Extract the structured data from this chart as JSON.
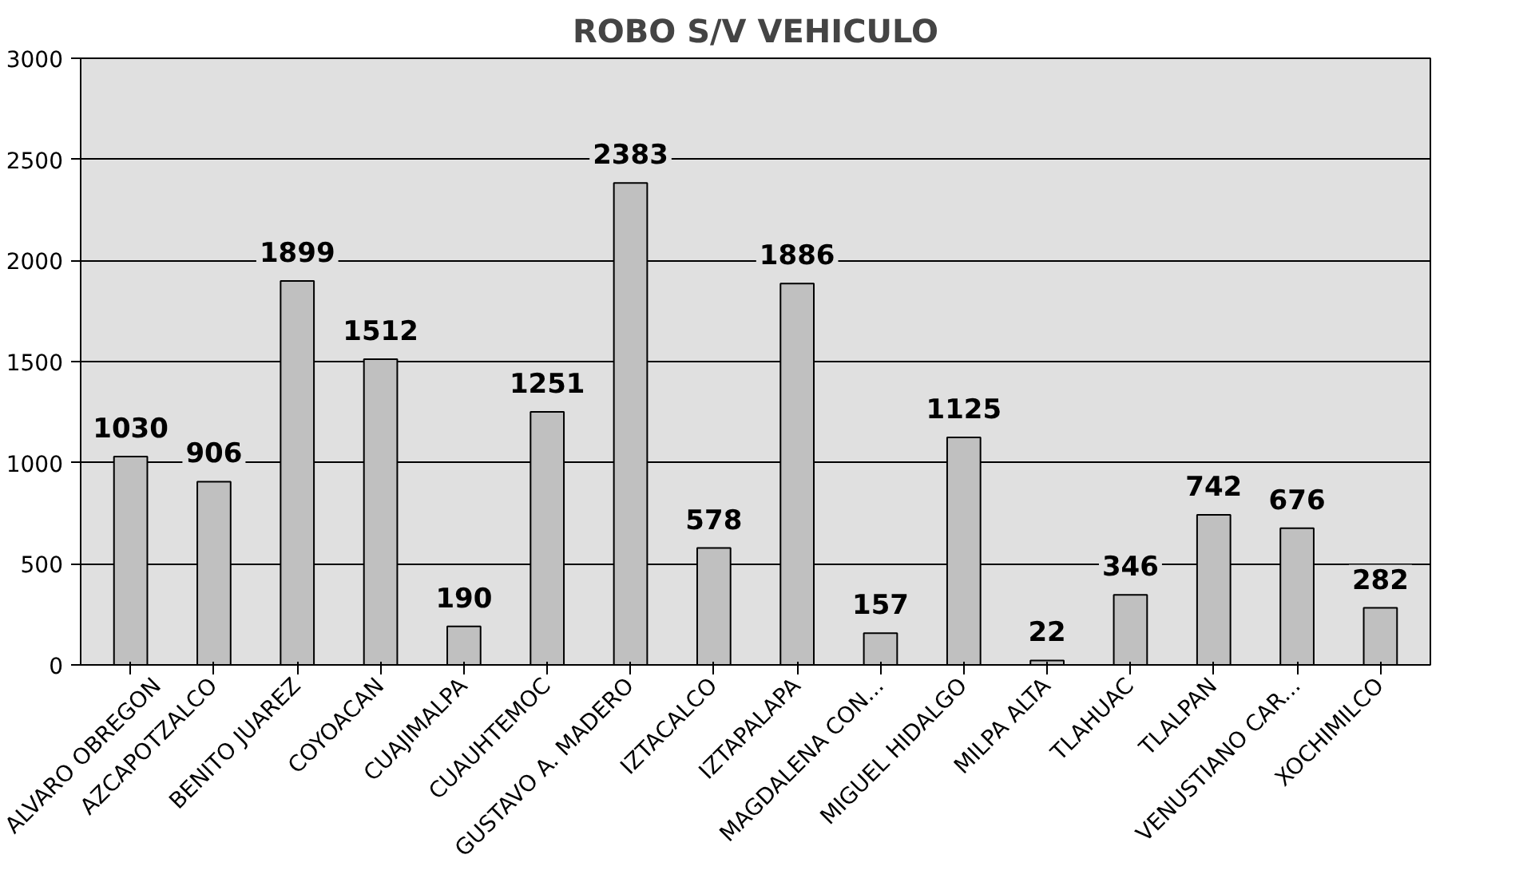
{
  "chart_data": {
    "type": "bar",
    "title": "ROBO S/V VEHICULO",
    "categories": [
      "ALVARO OBREGON",
      "AZCAPOTZALCO",
      "BENITO JUAREZ",
      "COYOACAN",
      "CUAJIMALPA",
      "CUAUHTEMOC",
      "GUSTAVO A. MADERO",
      "IZTACALCO",
      "IZTAPALAPA",
      "MAGDALENA CON...",
      "MIGUEL HIDALGO",
      "MILPA ALTA",
      "TLAHUAC",
      "TLALPAN",
      "VENUSTIANO CAR...",
      "XOCHIMILCO"
    ],
    "values": [
      1030,
      906,
      1899,
      1512,
      190,
      1251,
      2383,
      578,
      1886,
      157,
      1125,
      22,
      346,
      742,
      676,
      282
    ],
    "color": "#c0c0c0",
    "ylim": [
      0,
      3000
    ],
    "yticks": [
      0,
      500,
      1000,
      1500,
      2000,
      2500,
      3000
    ],
    "grid": "y",
    "data_labels": true
  }
}
